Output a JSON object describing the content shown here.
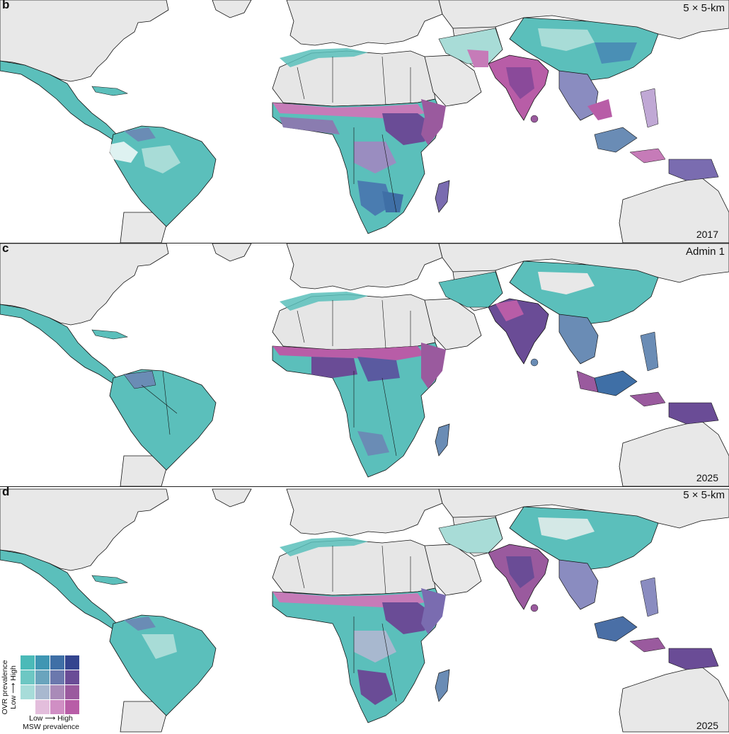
{
  "panels": [
    {
      "letter": "b",
      "resolution": "5 × 5-km",
      "year": "2017"
    },
    {
      "letter": "c",
      "resolution": "Admin 1",
      "year": "2025"
    },
    {
      "letter": "d",
      "resolution": "5 × 5-km",
      "year": "2025"
    }
  ],
  "legend": {
    "y_title": "OVR prevalence",
    "y_scale": "Low ⟶ High",
    "x_scale": "Low ⟶  High",
    "x_title": "MSW prevalence",
    "rows_high_to_low_ovr": [
      [
        "#4bbab8",
        "#3f96b3",
        "#3f6fa6",
        "#34458f"
      ],
      [
        "#6dc7c3",
        "#6aa4bd",
        "#6b78ad",
        "#6a4c96"
      ],
      [
        "#a7dcd9",
        "#a8b8cf",
        "#a98ab8",
        "#9a5a9e"
      ],
      [
        "#ffffff",
        "#e3bedc",
        "#d08fc4",
        "#b85da7"
      ]
    ]
  },
  "colors": {
    "land_background": "#e8e8e8",
    "ocean": "#ffffff",
    "teal": "#5bbfbb",
    "light_teal": "#a8dcd7",
    "purple": "#6a4c96",
    "magenta": "#b85da7",
    "border": "#111111"
  }
}
